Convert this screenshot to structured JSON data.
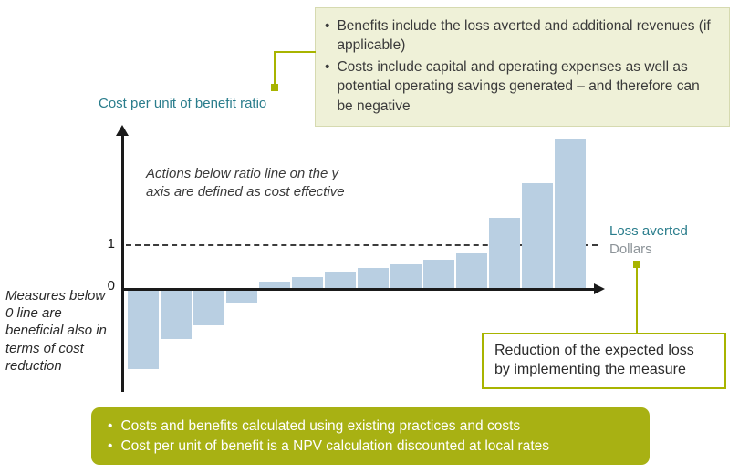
{
  "figure": {
    "y_axis_title": "Cost per unit of benefit ratio",
    "tick_1": "1",
    "tick_0": "0",
    "loss_averted_label": "Loss averted",
    "dollars_label": "Dollars",
    "annotation_cost_effective": "Actions below ratio line on the y axis are defined as cost effective",
    "annotation_measures": "Measures below 0 line are beneficial also in terms of cost reduction",
    "callout_benefits": {
      "bullet_char": "•",
      "bullets": [
        "Benefits include the loss averted and additional revenues (if applicable)",
        "Costs include capital and operating expenses as well as potential operating savings generated – and therefore can be negative"
      ]
    },
    "callout_reduction": "Reduction of the expected loss by implementing the measure",
    "footer": {
      "bullet_char": "•",
      "bullets": [
        "Costs and benefits calculated using existing practices and costs",
        "Cost per unit of benefit is a NPV calculation discounted  at local rates"
      ]
    }
  },
  "colors": {
    "bar_fill": "#b9cfe2",
    "teal_text": "#2a7d8c",
    "olive_accent": "#a8b400",
    "footer_bg": "#a8b113",
    "callout_bg": "#eff1d8",
    "gray_text": "#8d9499",
    "axis_black": "#1a1a1a"
  },
  "chart_data": {
    "type": "bar",
    "title": "Cost per unit of benefit ratio",
    "ylabel": "Cost per unit of benefit ratio",
    "xlabel": "Loss averted (Dollars)",
    "values": [
      -1.8,
      -1.1,
      -0.8,
      -0.3,
      0.15,
      0.25,
      0.35,
      0.45,
      0.55,
      0.65,
      0.8,
      1.6,
      2.4,
      3.4
    ],
    "reference_lines": [
      {
        "value": 1,
        "label": "1",
        "style": "dashed"
      },
      {
        "value": 0,
        "label": "0",
        "style": "solid"
      }
    ],
    "ylim": [
      -2,
      3.6
    ],
    "grid": false,
    "legend": "none",
    "annotations": [
      "Actions below ratio line on the y axis are defined as cost effective",
      "Measures below 0 line are beneficial also in terms of cost reduction"
    ]
  }
}
